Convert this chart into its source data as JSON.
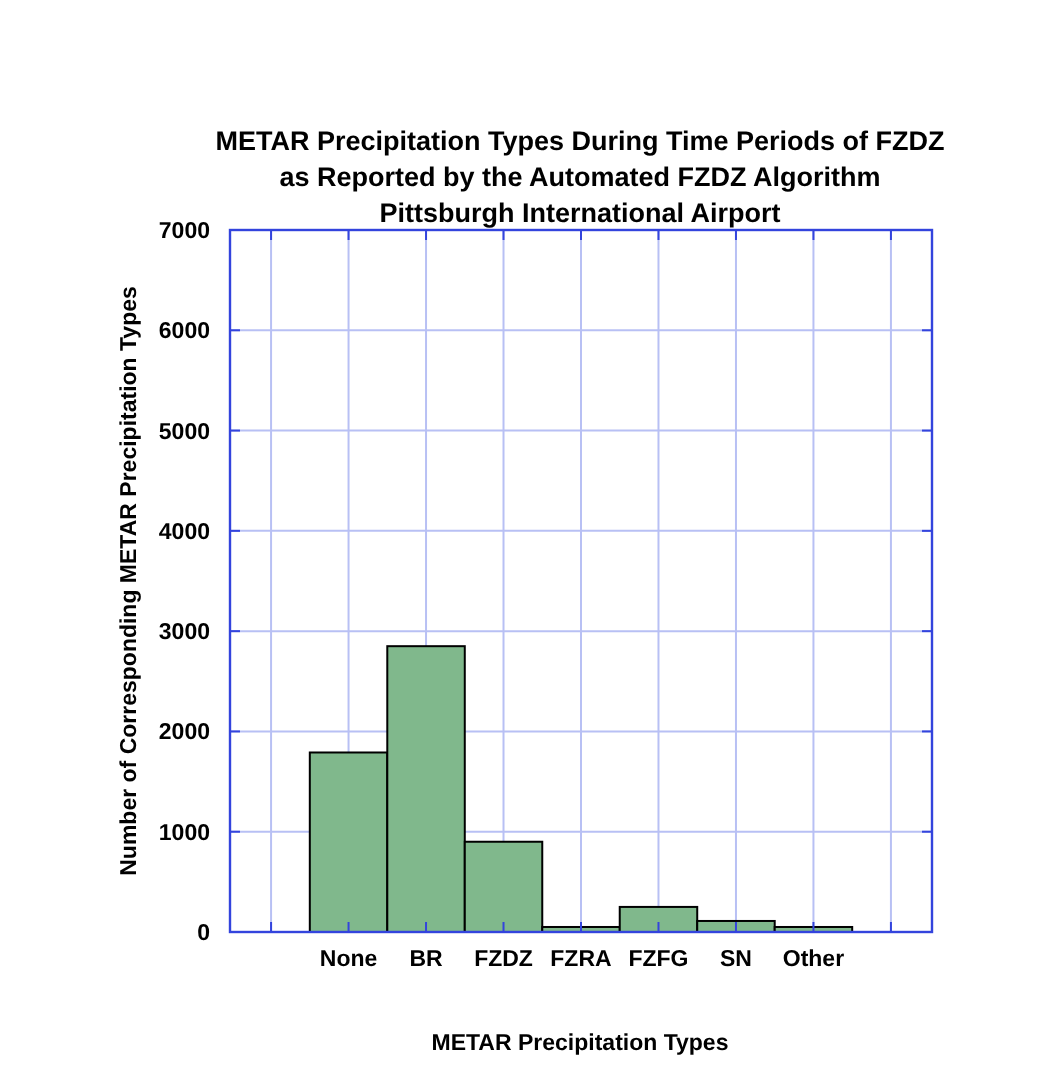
{
  "chart_data": {
    "type": "bar",
    "title": "METAR Precipitation Types During Time Periods of FZDZ\nas Reported by the Automated FZDZ Algorithm\nPittsburgh International Airport",
    "xlabel": "METAR Precipitation Types",
    "ylabel": "Number of Corresponding METAR Precipitation Types",
    "categories": [
      null,
      "None",
      "BR",
      "FZDZ",
      "FZRA",
      "FZFG",
      "SN",
      "Other",
      null
    ],
    "values": [
      null,
      1790,
      2850,
      900,
      50,
      250,
      110,
      50,
      null
    ],
    "color": "#80b88c",
    "ylim": [
      0,
      7000
    ],
    "yticks": [
      0,
      1000,
      2000,
      3000,
      4000,
      5000,
      6000,
      7000
    ],
    "grid": true
  }
}
